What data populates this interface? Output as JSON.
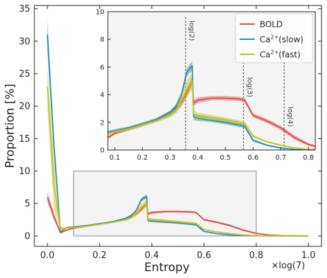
{
  "colors": {
    "bold": "#e24a4a",
    "ca_slow": "#2b8fab",
    "ca_fast": "#c2c12b",
    "inset_bg": "#f4f4f4",
    "box_edge": "#9a9a9a",
    "vline": "#444444"
  },
  "chart_data": [
    {
      "type": "line",
      "role": "main",
      "xlabel": "Entropy",
      "ylabel": "Proportion [%]",
      "x_multiplier_label": "×log(7)",
      "xlim": [
        -0.05,
        1.05
      ],
      "ylim": [
        -1.6,
        35.5
      ],
      "xticks": [
        0.0,
        0.2,
        0.4,
        0.6,
        0.8,
        1.0
      ],
      "xtick_labels": [
        "0.0",
        "0.2",
        "0.4",
        "0.6",
        "0.8",
        "1.0"
      ],
      "yticks": [
        0,
        5,
        10,
        15,
        20,
        25,
        30,
        35
      ],
      "ytick_labels": [
        "0",
        "5",
        "10",
        "15",
        "20",
        "25",
        "30",
        "35"
      ],
      "zoom_box": {
        "x": [
          0.1,
          0.8
        ],
        "y": [
          0,
          10
        ]
      },
      "x": [
        0.0,
        0.025,
        0.05,
        0.075,
        0.1,
        0.15,
        0.2,
        0.25,
        0.3,
        0.32,
        0.34,
        0.36,
        0.38,
        0.385,
        0.4,
        0.45,
        0.5,
        0.55,
        0.57,
        0.6,
        0.65,
        0.7,
        0.75,
        0.8,
        0.85,
        0.9,
        0.95,
        1.0
      ],
      "series": [
        {
          "name": "BOLD",
          "color_key": "bold",
          "values": [
            6.0,
            3.0,
            0.5,
            0.9,
            1.2,
            1.5,
            1.8,
            2.2,
            2.7,
            3.0,
            3.4,
            4.1,
            5.0,
            3.4,
            3.6,
            3.75,
            3.75,
            3.7,
            3.6,
            2.5,
            2.1,
            1.6,
            0.9,
            0.4,
            0.15,
            0.05,
            0.02,
            0.02
          ],
          "band": [
            0.8,
            0.6,
            0.1,
            0.1,
            0.1,
            0.1,
            0.1,
            0.1,
            0.15,
            0.2,
            0.25,
            0.3,
            0.35,
            0.2,
            0.2,
            0.15,
            0.15,
            0.15,
            0.15,
            0.15,
            0.15,
            0.15,
            0.15,
            0.1,
            0.05,
            0.02,
            0.01,
            0.01
          ]
        },
        {
          "name": "Ca2+(slow)",
          "color_key": "ca_slow",
          "values": [
            31.0,
            14.0,
            0.6,
            1.3,
            1.4,
            1.6,
            1.9,
            2.2,
            2.7,
            3.1,
            3.9,
            5.6,
            6.1,
            2.4,
            2.3,
            2.15,
            2.0,
            1.8,
            1.7,
            0.7,
            0.35,
            0.15,
            0.05,
            0.02,
            0.01,
            0.01,
            0.01,
            0.01
          ],
          "band": [
            2.5,
            1.5,
            0.2,
            0.1,
            0.1,
            0.1,
            0.1,
            0.1,
            0.15,
            0.2,
            0.25,
            0.3,
            0.35,
            0.25,
            0.2,
            0.15,
            0.15,
            0.15,
            0.15,
            0.1,
            0.05,
            0.05,
            0.02,
            0.01,
            0.01,
            0.01,
            0.01,
            0.01
          ]
        },
        {
          "name": "Ca2+(fast)",
          "color_key": "ca_fast",
          "values": [
            23.0,
            8.0,
            1.1,
            1.2,
            1.3,
            1.5,
            1.8,
            2.1,
            2.5,
            2.8,
            3.5,
            4.4,
            5.0,
            2.6,
            2.5,
            2.35,
            2.2,
            2.0,
            1.9,
            1.0,
            0.6,
            0.35,
            0.15,
            0.05,
            0.02,
            0.01,
            0.01,
            0.01
          ],
          "band": [
            3.5,
            4.0,
            0.4,
            0.1,
            0.1,
            0.1,
            0.1,
            0.1,
            0.15,
            0.2,
            0.4,
            0.6,
            0.6,
            0.3,
            0.2,
            0.2,
            0.15,
            0.15,
            0.15,
            0.1,
            0.05,
            0.05,
            0.02,
            0.01,
            0.01,
            0.01,
            0.01,
            0.01
          ]
        }
      ]
    },
    {
      "type": "line",
      "role": "inset",
      "xlim": [
        0.075,
        0.825
      ],
      "ylim": [
        0,
        10
      ],
      "xticks": [
        0.1,
        0.2,
        0.3,
        0.4,
        0.5,
        0.6,
        0.7,
        0.8
      ],
      "xtick_labels": [
        "0.1",
        "0.2",
        "0.3",
        "0.4",
        "0.5",
        "0.6",
        "0.7",
        "0.8"
      ],
      "yticks": [
        0,
        2,
        4,
        6,
        8,
        10
      ],
      "ytick_labels": [
        "0",
        "2",
        "4",
        "6",
        "8",
        "10"
      ],
      "legend_position": "top-right",
      "legend": [
        {
          "label_base": "Ca",
          "label_sup": "2+",
          "label_rest": "(slow)",
          "label_plain": "",
          "color_key": "ca_slow",
          "order": 2
        },
        {
          "label_base": "",
          "label_sup": "",
          "label_rest": "",
          "label_plain": "BOLD",
          "color_key": "bold",
          "order": 1
        },
        {
          "label_base": "Ca",
          "label_sup": "2+",
          "label_rest": "(fast)",
          "label_plain": "",
          "color_key": "ca_fast",
          "order": 3
        }
      ],
      "vlines": [
        {
          "x": 0.356,
          "label": "log(2)"
        },
        {
          "x": 0.565,
          "label": "log(3)"
        },
        {
          "x": 0.712,
          "label": "log(4)"
        }
      ]
    }
  ]
}
